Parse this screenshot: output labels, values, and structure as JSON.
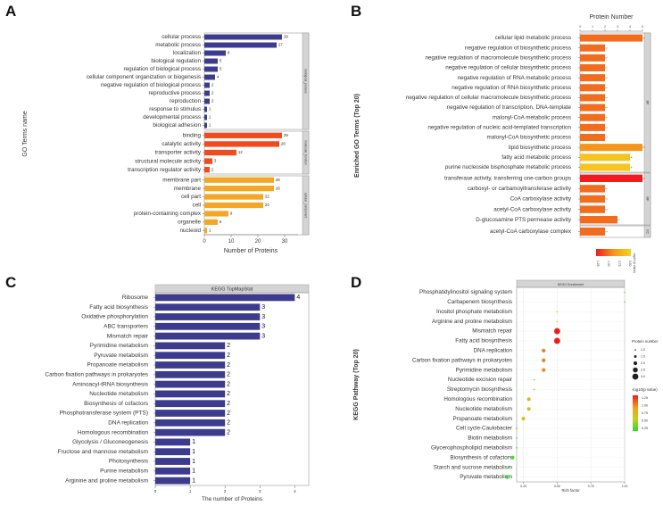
{
  "panel_labels": [
    "A",
    "B",
    "C",
    "D"
  ],
  "chart_data": [
    {
      "panel": "A",
      "type": "bar",
      "orientation": "horizontal",
      "xlabel": "Number of Proteins",
      "ylabel": "GO Terms name",
      "xlim": [
        0,
        35
      ],
      "xticks": [
        0,
        10,
        20,
        30
      ],
      "groups": [
        {
          "name": "biological_process",
          "color": "#3d3b8e",
          "categories": [
            "cellular process",
            "metabolic process",
            "localization",
            "biological regulation",
            "regulation of biological process",
            "cellular component organization or biogenesis",
            "negative regulation of biological process",
            "reproductive process",
            "reproduction",
            "response to stimulus",
            "developmental process",
            "biological adhesion"
          ],
          "values": [
            29,
            27,
            8,
            5,
            5,
            4,
            2,
            2,
            2,
            1,
            1,
            1
          ]
        },
        {
          "name": "molecular_function",
          "color": "#f04a1e",
          "categories": [
            "binding",
            "catalytic activity",
            "transporter activity",
            "structural molecule activity",
            "transcription regulator activity"
          ],
          "values": [
            29,
            28,
            12,
            3,
            2
          ]
        },
        {
          "name": "cellular_component",
          "color": "#f5a623",
          "categories": [
            "membrane part",
            "membrane",
            "cell part",
            "cell",
            "protein-containing complex",
            "organelle",
            "nucleoid"
          ],
          "values": [
            26,
            26,
            22,
            22,
            9,
            5,
            1
          ]
        }
      ]
    },
    {
      "panel": "B",
      "type": "bar",
      "orientation": "horizontal",
      "title": "Protein Number",
      "ylabel": "Enriched GO Terms (Top 20)",
      "xlim": [
        0,
        5
      ],
      "xticks": [
        0,
        1,
        2,
        3,
        4,
        5
      ],
      "groups": [
        {
          "name": "BP",
          "categories": [
            "cellular lipid metabolic process",
            "negative regulation of biosynthetic process",
            "negative regulation of macromolecule biosynthetic process",
            "negative regulation of cellular biosynthetic process",
            "negative regulation of RNA metabolic process",
            "negative regulation of RNA biosynthetic process",
            "negative regulation of cellular macromolecule biosynthetic process",
            "negative regulation of transcription, DNA-template",
            "malonyl-CoA metabolic process",
            "negative regulation of nucleic acid-templated transcription",
            "malonyl-CoA biosynthetic process",
            "lipid biosynthetic process",
            "fatty acid metabolic process",
            "purine nucleoside bisphosphate metabolic process"
          ],
          "values": [
            5,
            2,
            2,
            2,
            2,
            2,
            2,
            2,
            2,
            2,
            2,
            5,
            4,
            4
          ],
          "neglog10p": [
            0.95,
            0.95,
            0.95,
            0.95,
            0.95,
            0.95,
            0.95,
            0.95,
            0.95,
            0.95,
            0.95,
            0.9,
            0.75,
            0.7
          ]
        },
        {
          "name": "MF",
          "categories": [
            "transferase activity, transferring one-carbon groups",
            "carboxyl- or carbamoyltransferase activity",
            "CoA carboxylase activity",
            "acetyl-CoA carboxylase activity",
            "D-glucosamine PTS permease activity"
          ],
          "values": [
            5,
            2,
            2,
            2,
            3
          ],
          "neglog10p": [
            1.25,
            0.95,
            0.95,
            0.95,
            0.95
          ]
        },
        {
          "name": "CC",
          "categories": [
            "acetyl-CoA carboxylase complex"
          ],
          "values": [
            2
          ],
          "neglog10p": [
            0.95
          ]
        }
      ],
      "legend": {
        "title": "-log10 (p value)",
        "ticks": [
          "0.50",
          "0.75",
          "1.00",
          "1.25"
        ]
      }
    },
    {
      "panel": "C",
      "type": "bar",
      "orientation": "horizontal",
      "title": "KEGG TopMapStat",
      "xlabel": "The number of Proteins",
      "xlim": [
        0,
        4.4
      ],
      "xticks": [
        0,
        1,
        2,
        3,
        4
      ],
      "color": "#3d3b8e",
      "categories": [
        "Ribosome",
        "Fatty acid biosynthesis",
        "Oxidative phosphorylation",
        "ABC transporters",
        "Mismatch repair",
        "Pyrimidine metabolism",
        "Pyruvate metabolism",
        "Propanoate metabolism",
        "Carbon fixation pathways in prokaryotes",
        "Aminoacyl-tRNA biosynthesis",
        "Nucleotide metabolism",
        "Biosynthesis of cofactors",
        "Phosphotransferase system (PTS)",
        "DNA replication",
        "Homologous recombination",
        "Glycolysis / Gluconeogenesis",
        "Fructose and mannose metabolism",
        "Photosynthesis",
        "Purine metabolism",
        "Arginine and proline metabolism"
      ],
      "values": [
        4,
        3,
        3,
        3,
        3,
        2,
        2,
        2,
        2,
        2,
        2,
        2,
        2,
        2,
        2,
        1,
        1,
        1,
        1,
        1
      ]
    },
    {
      "panel": "D",
      "type": "scatter",
      "title": "KEGG Enrichment",
      "xlabel": "Rich factor",
      "ylabel": "KEGG Pathway (Top 20)",
      "xlim": [
        0.2,
        1.0
      ],
      "xticks": [
        0.25,
        0.5,
        0.75,
        1.0
      ],
      "categories": [
        "Phosphatidylinositol signaling system",
        "Carbapenem biosynthesis",
        "Inositol phosphate metabolism",
        "Arginine and proline metabolism",
        "Mismatch repair",
        "Fatty acid biosynthesis",
        "DNA replication",
        "Carbon fixation pathways in prokaryotes",
        "Pyrimidine metabolism",
        "Nucleotide excision repair",
        "Streptomycin biosynthesis",
        "Homologous recombination",
        "Nucleotide metabolism",
        "Propanoate metabolism",
        "Cell cycle-Caulobacter",
        "Biotin metabolism",
        "Glycerophospholipid metabolism",
        "Biosynthesis of cofactors",
        "Starch and sucrose metabolism",
        "Pyruvate metabolism"
      ],
      "x": [
        1.0,
        1.0,
        0.5,
        0.5,
        0.5,
        0.5,
        0.4,
        0.4,
        0.4,
        0.33,
        0.33,
        0.29,
        0.29,
        0.25,
        0.2,
        0.2,
        0.2,
        0.17,
        0.14,
        0.13
      ],
      "size": [
        1,
        1,
        1,
        1,
        3,
        3,
        2,
        2,
        2,
        1,
        1,
        2,
        2,
        2,
        1,
        1,
        1,
        2,
        1,
        2
      ],
      "neglog10p": [
        0.25,
        0.25,
        0.4,
        0.4,
        1.25,
        1.25,
        0.85,
        0.85,
        0.8,
        0.25,
        0.25,
        0.55,
        0.5,
        0.45,
        0.15,
        0.15,
        0.15,
        0.2,
        0.15,
        0.15
      ],
      "legend_size": {
        "title": "Protein number",
        "ticks": [
          "1.0",
          "1.5",
          "2.0",
          "2.5",
          "3.0"
        ]
      },
      "legend_color": {
        "title": "-log10(p value)",
        "ticks": [
          "1.25",
          "1.00",
          "0.75",
          "0.50",
          "0.25"
        ]
      }
    }
  ]
}
